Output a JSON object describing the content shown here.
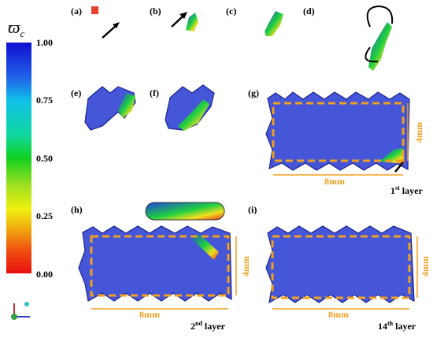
{
  "colorbar": {
    "title": {
      "symbol": "ϖ",
      "subscript": "c"
    },
    "ticks": [
      "1.00",
      "0.75",
      "0.50",
      "0.25",
      "0.00"
    ]
  },
  "panels": [
    {
      "label": "(a)"
    },
    {
      "label": "(b)"
    },
    {
      "label": "(c)"
    },
    {
      "label": "(d)"
    },
    {
      "label": "(e)"
    },
    {
      "label": "(f)"
    },
    {
      "label": "(g)",
      "width": "8mm",
      "height": "4mm",
      "layer": {
        "number": "1",
        "suffix": "st",
        "word": "layer"
      }
    },
    {
      "label": "(h)",
      "width": "8mm",
      "height": "4mm",
      "layer": {
        "number": "2",
        "suffix": "nd",
        "word": "layer"
      }
    },
    {
      "label": "(i)",
      "width": "8mm",
      "height": "4mm",
      "layer": {
        "number": "14",
        "suffix": "th",
        "word": "layer"
      }
    }
  ]
}
